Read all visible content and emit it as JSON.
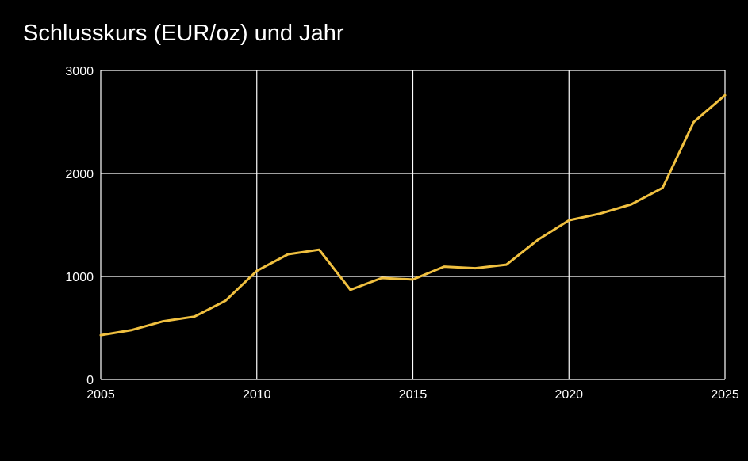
{
  "chart_data": {
    "type": "line",
    "title": "Schlusskurs (EUR/oz) und Jahr",
    "xlabel": "",
    "ylabel": "",
    "xlim": [
      2005,
      2025
    ],
    "ylim": [
      0,
      3000
    ],
    "x_ticks": [
      2005,
      2010,
      2015,
      2020,
      2025
    ],
    "y_ticks": [
      0,
      1000,
      2000,
      3000
    ],
    "grid": true,
    "series": [
      {
        "color": "#f0c040",
        "x": [
          2005,
          2006,
          2007,
          2008,
          2009,
          2010,
          2011,
          2012,
          2013,
          2014,
          2015,
          2016,
          2017,
          2018,
          2019,
          2020,
          2021,
          2022,
          2023,
          2024,
          2025
        ],
        "y": [
          430,
          480,
          565,
          610,
          765,
          1055,
          1215,
          1260,
          870,
          985,
          970,
          1095,
          1080,
          1115,
          1355,
          1545,
          1610,
          1700,
          1860,
          2500,
          2760
        ]
      }
    ]
  }
}
